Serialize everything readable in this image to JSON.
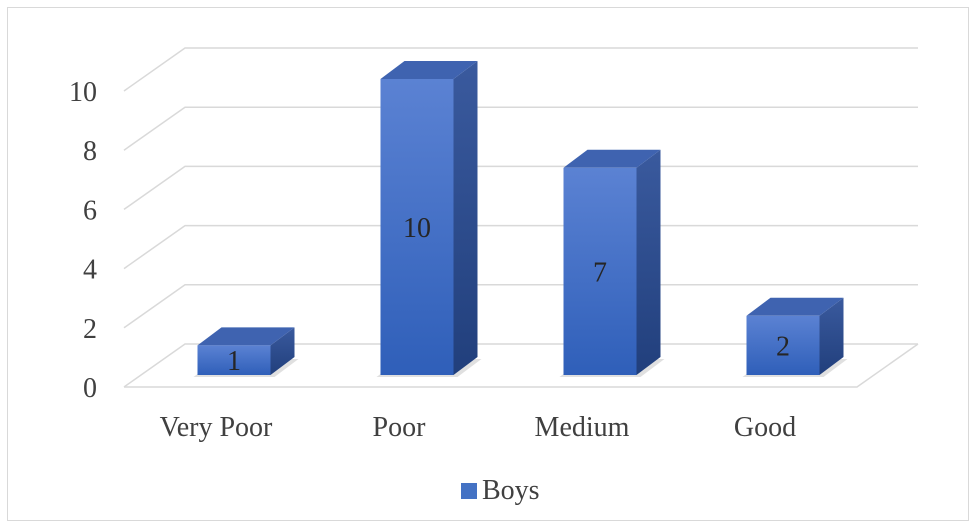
{
  "chart_data": {
    "type": "bar",
    "style": "3d-column",
    "categories": [
      "Very Poor",
      "Poor",
      "Medium",
      "Good"
    ],
    "series": [
      {
        "name": "Boys",
        "values": [
          1,
          10,
          7,
          2
        ],
        "color": "#4472c4"
      }
    ],
    "data_labels": [
      "1",
      "10",
      "7",
      "2"
    ],
    "y_ticks": [
      "0",
      "2",
      "4",
      "6",
      "8",
      "10"
    ],
    "ylim": [
      0,
      10
    ],
    "title": "",
    "xlabel": "",
    "ylabel": "",
    "grid": true,
    "legend": "bottom"
  }
}
